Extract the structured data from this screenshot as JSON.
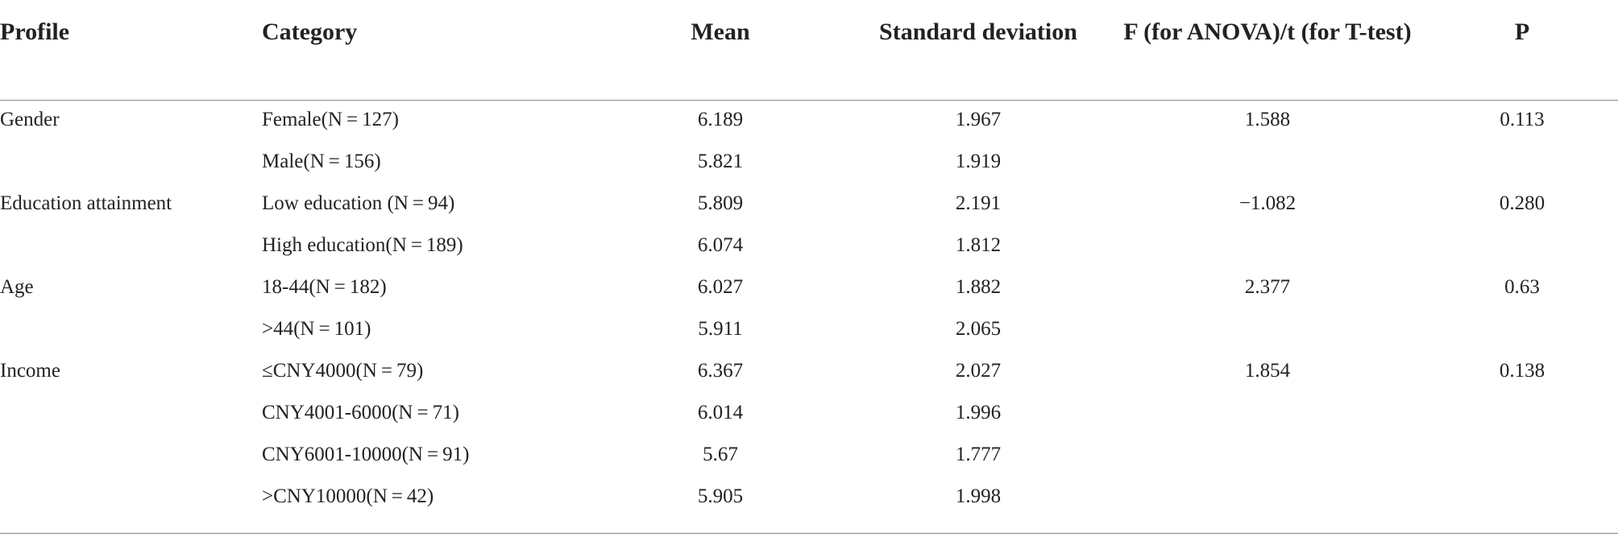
{
  "table": {
    "header": [
      "Profile",
      "Category",
      "Mean",
      "Standard deviation",
      "F (for ANOVA)/t (for T-test)",
      "P"
    ],
    "rows": [
      [
        "Gender",
        "Female(N = 127)",
        "6.189",
        "1.967",
        "1.588",
        "0.113"
      ],
      [
        null,
        "Male(N = 156)",
        "5.821",
        "1.919",
        null,
        null
      ],
      [
        "Education attainment",
        "Low education (N = 94)",
        "5.809",
        "2.191",
        "−1.082",
        "0.280"
      ],
      [
        null,
        "High education(N = 189)",
        "6.074",
        "1.812",
        null,
        null
      ],
      [
        "Age",
        "18-44(N = 182)",
        "6.027",
        "1.882",
        "2.377",
        "0.63"
      ],
      [
        null,
        ">44(N = 101)",
        "5.911",
        "2.065",
        null,
        null
      ],
      [
        "Income",
        "≤CNY4000(N = 79)",
        "6.367",
        "2.027",
        "1.854",
        "0.138"
      ],
      [
        null,
        "CNY4001-6000(N = 71)",
        "6.014",
        "1.996",
        null,
        null
      ],
      [
        null,
        "CNY6001-10000(N = 91)",
        "5.67",
        "1.777",
        null,
        null
      ],
      [
        null,
        ">CNY10000(N = 42)",
        "5.905",
        "1.998",
        null,
        null
      ]
    ]
  }
}
